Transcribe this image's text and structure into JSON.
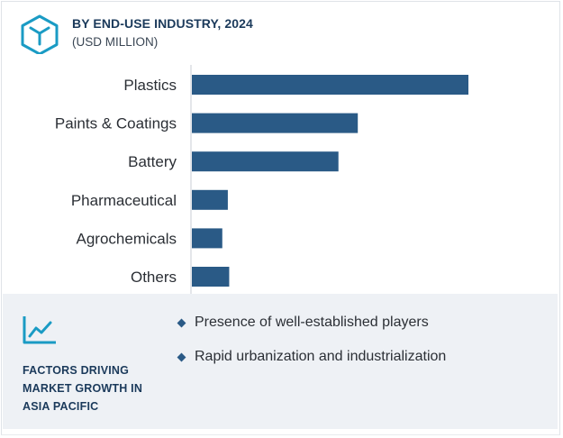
{
  "header": {
    "logo_icon": "cube-hexagon-icon",
    "title": "BY END-USE INDUSTRY, 2024",
    "subtitle": "(USD MILLION)"
  },
  "chart_data": {
    "type": "bar",
    "orientation": "horizontal",
    "categories": [
      "Plastics",
      "Paints & Coatings",
      "Battery",
      "Pharmaceutical",
      "Agrochemicals",
      "Others"
    ],
    "values": [
      100,
      60,
      53,
      13,
      11,
      13.5
    ],
    "value_scale": "relative (no axis values shown)",
    "grid": false,
    "legend": "none",
    "bar_color": "#2a5a86"
  },
  "factors": {
    "icon": "trend-line-chart-icon",
    "heading_lines": [
      "FACTORS DRIVING",
      "MARKET GROWTH IN",
      "ASIA PACIFIC"
    ],
    "items": [
      "Presence of well-established players",
      "Rapid urbanization and industrialization"
    ]
  },
  "colors": {
    "accent": "#1a9bc4",
    "bar": "#2a5a86",
    "heading": "#1b3a5b",
    "panel_bg": "#eef1f5"
  }
}
